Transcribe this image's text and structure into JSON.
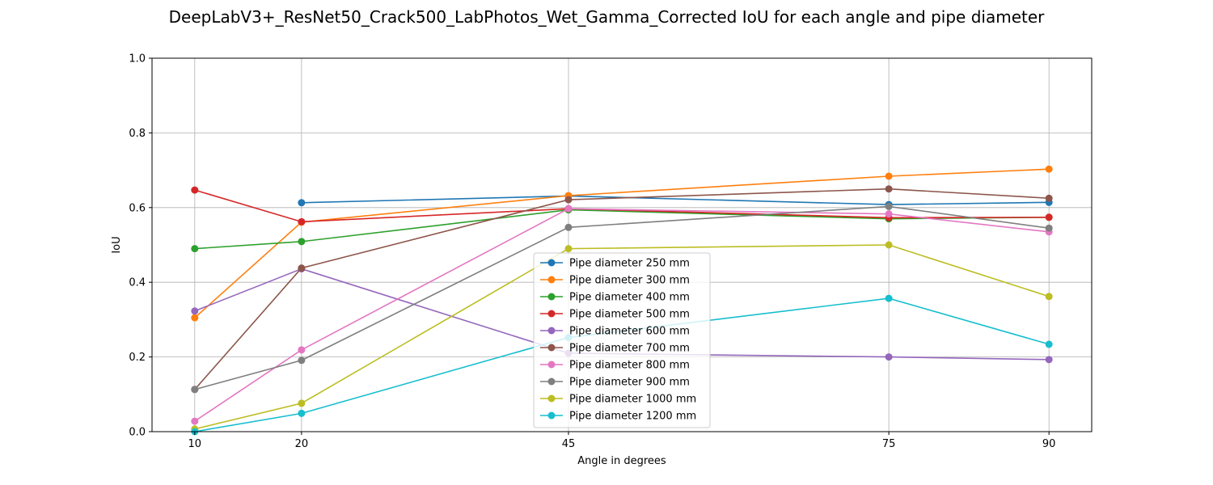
{
  "chart_data": {
    "type": "line",
    "title": "DeepLabV3+_ResNet50_Crack500_LabPhotos_Wet_Gamma_Corrected IoU for each angle and pipe diameter",
    "xlabel": "Angle in degrees",
    "ylabel": "IoU",
    "x_ticks": [
      10,
      20,
      45,
      75,
      90
    ],
    "y_ticks": [
      0.0,
      0.2,
      0.4,
      0.6,
      0.8,
      1.0
    ],
    "y_tick_labels": [
      "0.0",
      "0.2",
      "0.4",
      "0.6",
      "0.8",
      "1.0"
    ],
    "xlim": [
      6,
      94
    ],
    "ylim": [
      0,
      1
    ],
    "grid": true,
    "legend_position": "center",
    "series": [
      {
        "name": "Pipe diameter 250 mm",
        "color": "#1f77b4",
        "x": [
          20,
          45,
          75,
          90
        ],
        "y": [
          0.613,
          0.631,
          0.608,
          0.614
        ]
      },
      {
        "name": "Pipe diameter 300 mm",
        "color": "#ff7f0e",
        "x": [
          10,
          20,
          45,
          75,
          90
        ],
        "y": [
          0.305,
          0.561,
          0.632,
          0.684,
          0.703
        ]
      },
      {
        "name": "Pipe diameter 400 mm",
        "color": "#2ca02c",
        "x": [
          10,
          20,
          45,
          75,
          90
        ],
        "y": [
          0.49,
          0.509,
          0.594,
          0.57,
          0.574
        ]
      },
      {
        "name": "Pipe diameter 500 mm",
        "color": "#d62728",
        "x": [
          10,
          20,
          45,
          75,
          90
        ],
        "y": [
          0.647,
          0.562,
          0.597,
          0.573,
          0.574
        ]
      },
      {
        "name": "Pipe diameter 600 mm",
        "color": "#9467bd",
        "x": [
          10,
          20,
          45,
          75,
          90
        ],
        "y": [
          0.323,
          0.436,
          0.21,
          0.2,
          0.193
        ]
      },
      {
        "name": "Pipe diameter 700 mm",
        "color": "#8c564b",
        "x": [
          10,
          20,
          45,
          75,
          90
        ],
        "y": [
          0.113,
          0.438,
          0.621,
          0.65,
          0.625
        ]
      },
      {
        "name": "Pipe diameter 800 mm",
        "color": "#e377c2",
        "x": [
          10,
          20,
          45,
          75,
          90
        ],
        "y": [
          0.028,
          0.219,
          0.597,
          0.583,
          0.535
        ]
      },
      {
        "name": "Pipe diameter 900 mm",
        "color": "#7f7f7f",
        "x": [
          10,
          20,
          45,
          75,
          90
        ],
        "y": [
          0.113,
          0.191,
          0.547,
          0.603,
          0.545
        ]
      },
      {
        "name": "Pipe diameter 1000 mm",
        "color": "#bcbd22",
        "x": [
          10,
          20,
          45,
          75,
          90
        ],
        "y": [
          0.007,
          0.076,
          0.49,
          0.5,
          0.362
        ]
      },
      {
        "name": "Pipe diameter 1200 mm",
        "color": "#17becf",
        "x": [
          10,
          20,
          45,
          75,
          90
        ],
        "y": [
          0.0,
          0.049,
          0.252,
          0.357,
          0.234
        ]
      }
    ]
  }
}
